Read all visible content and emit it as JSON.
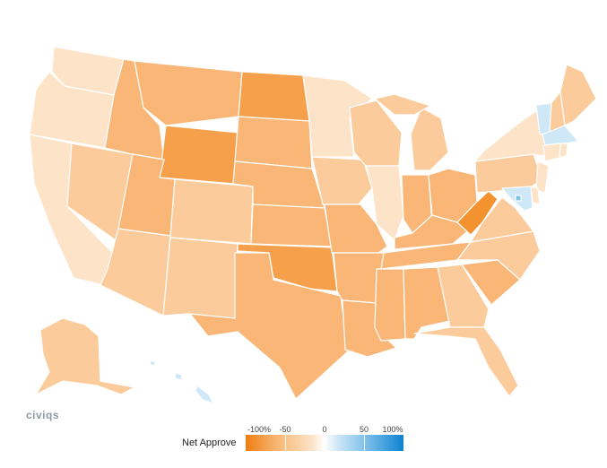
{
  "brand": {
    "logo_text": "civiqs"
  },
  "legend": {
    "title": "Net Approve",
    "ticks": [
      "-100%",
      "-50",
      "0",
      "50",
      "100%"
    ],
    "tick_values": [
      -100,
      -50,
      0,
      50,
      100
    ]
  },
  "colors": {
    "strong_disapprove": "#f7a04c",
    "disapprove_mid": "#f9b676",
    "disapprove_light": "#fbcb9b",
    "slight_disapprove": "#fde3c8",
    "slight_approve": "#cfe8f7",
    "stroke": "#ffffff"
  },
  "states": [
    {
      "id": "WA",
      "net": -18
    },
    {
      "id": "OR",
      "net": -20
    },
    {
      "id": "CA",
      "net": -16
    },
    {
      "id": "NV",
      "net": -32
    },
    {
      "id": "ID",
      "net": -48
    },
    {
      "id": "MT",
      "net": -40
    },
    {
      "id": "WY",
      "net": -62
    },
    {
      "id": "UT",
      "net": -45
    },
    {
      "id": "AZ",
      "net": -36
    },
    {
      "id": "CO",
      "net": -30
    },
    {
      "id": "NM",
      "net": -34
    },
    {
      "id": "ND",
      "net": -60
    },
    {
      "id": "SD",
      "net": -45
    },
    {
      "id": "NE",
      "net": -45
    },
    {
      "id": "KS",
      "net": -46
    },
    {
      "id": "OK",
      "net": -58
    },
    {
      "id": "TX",
      "net": -42
    },
    {
      "id": "MN",
      "net": -20
    },
    {
      "id": "IA",
      "net": -30
    },
    {
      "id": "MO",
      "net": -42
    },
    {
      "id": "AR",
      "net": -52
    },
    {
      "id": "LA",
      "net": -44
    },
    {
      "id": "WI",
      "net": -28
    },
    {
      "id": "IL",
      "net": -14
    },
    {
      "id": "MI",
      "net": -30
    },
    {
      "id": "IN",
      "net": -45
    },
    {
      "id": "OH",
      "net": -38
    },
    {
      "id": "KY",
      "net": -52
    },
    {
      "id": "TN",
      "net": -48
    },
    {
      "id": "MS",
      "net": -44
    },
    {
      "id": "AL",
      "net": -52
    },
    {
      "id": "GA",
      "net": -34
    },
    {
      "id": "FL",
      "net": -36
    },
    {
      "id": "SC",
      "net": -40
    },
    {
      "id": "NC",
      "net": -32
    },
    {
      "id": "VA",
      "net": -28
    },
    {
      "id": "WV",
      "net": -75
    },
    {
      "id": "PA",
      "net": -30
    },
    {
      "id": "NY",
      "net": -14
    },
    {
      "id": "VT",
      "net": 12
    },
    {
      "id": "NH",
      "net": -24
    },
    {
      "id": "ME",
      "net": -24
    },
    {
      "id": "MA",
      "net": 8
    },
    {
      "id": "CT",
      "net": -12
    },
    {
      "id": "RI",
      "net": -10
    },
    {
      "id": "NJ",
      "net": -18
    },
    {
      "id": "DE",
      "net": -10
    },
    {
      "id": "MD",
      "net": 10
    },
    {
      "id": "DC",
      "net": 50
    },
    {
      "id": "AK",
      "net": -36
    },
    {
      "id": "HI",
      "net": 15
    }
  ]
}
